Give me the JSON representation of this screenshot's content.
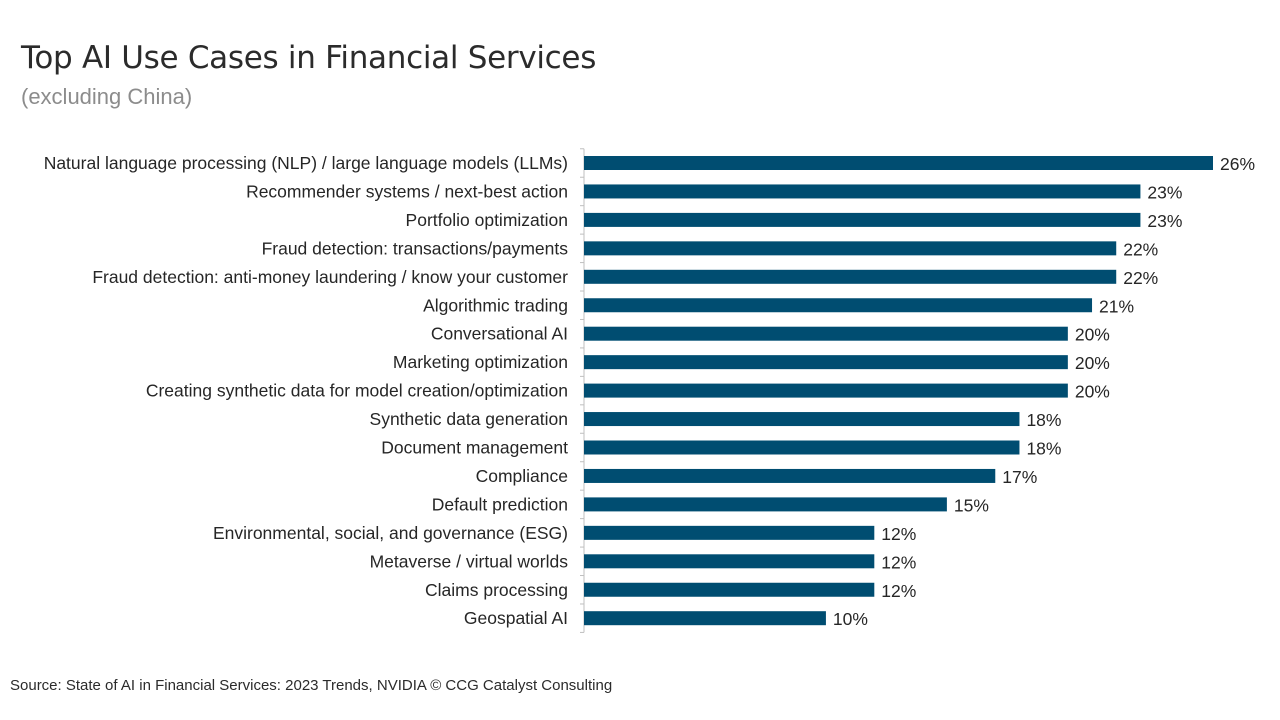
{
  "header": {
    "title": "Top AI Use Cases in Financial Services",
    "subtitle": "(excluding China)"
  },
  "footer": {
    "source": "Source: State of AI in Financial Services: 2023 Trends, NVIDIA © CCG Catalyst Consulting"
  },
  "colors": {
    "bar": "#004d71",
    "label": "#262626",
    "axis": "#bfbfbf"
  },
  "chart_data": {
    "type": "bar",
    "orientation": "horizontal",
    "title": "Top AI Use Cases in Financial Services",
    "subtitle": "(excluding China)",
    "xlabel": "",
    "ylabel": "",
    "grid": false,
    "legend": "none",
    "value_suffix": "%",
    "xlim": [
      0,
      26
    ],
    "categories": [
      "Natural language processing (NLP) / large language models (LLMs)",
      "Recommender systems / next-best action",
      "Portfolio optimization",
      "Fraud detection: transactions/payments",
      "Fraud detection: anti-money laundering / know your customer",
      "Algorithmic trading",
      "Conversational AI",
      "Marketing optimization",
      "Creating synthetic data for model creation/optimization",
      "Synthetic data generation",
      "Document management",
      "Compliance",
      "Default prediction",
      "Environmental, social, and governance (ESG)",
      "Metaverse / virtual worlds",
      "Claims processing",
      "Geospatial AI"
    ],
    "values": [
      26,
      23,
      23,
      22,
      22,
      21,
      20,
      20,
      20,
      18,
      18,
      17,
      15,
      12,
      12,
      12,
      10
    ]
  }
}
